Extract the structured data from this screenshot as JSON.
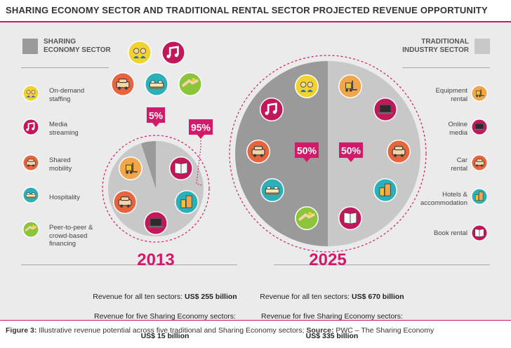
{
  "title": "SHARING ECONOMY SECTOR AND TRADITIONAL RENTAL SECTOR PROJECTED REVENUE OPPORTUNITY",
  "left_header": "SHARING\nECONOMY SECTOR",
  "right_header": "TRADITIONAL\nINDUSTRY SECTOR",
  "colors": {
    "accent": "#d2196a",
    "sharing": "#9a9a9a",
    "traditional": "#c8c8c8",
    "panel": "#ebebeb"
  },
  "left_legend": [
    {
      "label": "On-demand\nstaffing",
      "icon": "staffing-icon",
      "color": "#f2d22e"
    },
    {
      "label": "Media\nstreaming",
      "icon": "music-icon",
      "color": "#c2185b"
    },
    {
      "label": "Shared\nmobility",
      "icon": "car-icon",
      "color": "#e8643c"
    },
    {
      "label": "Hospitality",
      "icon": "bed-icon",
      "color": "#2ab0b8"
    },
    {
      "label": "Peer-to-peer &\ncrowd-based\nfinancing",
      "icon": "handshake-icon",
      "color": "#8cc43c"
    }
  ],
  "right_legend": [
    {
      "label": "Equipment\nrental",
      "icon": "forklift-icon",
      "color": "#f0a64a"
    },
    {
      "label": "Online\nmedia",
      "icon": "laptop-icon",
      "color": "#c2185b"
    },
    {
      "label": "Car\nrental",
      "icon": "car-icon",
      "color": "#e8643c"
    },
    {
      "label": "Hotels &\naccommodation",
      "icon": "buildings-icon",
      "color": "#2ab0b8"
    },
    {
      "label": "Book rental",
      "icon": "book-icon",
      "color": "#c2185b"
    }
  ],
  "chart_data": [
    {
      "type": "pie",
      "title": "2013",
      "slices": [
        {
          "name": "Sharing Economy",
          "value": 5,
          "label": "5%"
        },
        {
          "name": "Traditional",
          "value": 95,
          "label": "95%"
        }
      ],
      "revenue_line1_prefix": "Revenue for all ten sectors: ",
      "revenue_line1_value": "US$ 255 billion",
      "revenue_line2": "Revenue for five Sharing Economy sectors:",
      "revenue_line3": "US$ 15 billion"
    },
    {
      "type": "pie",
      "title": "2025",
      "slices": [
        {
          "name": "Sharing Economy",
          "value": 50,
          "label": "50%"
        },
        {
          "name": "Traditional",
          "value": 50,
          "label": "50%"
        }
      ],
      "revenue_line1_prefix": "Revenue for all ten sectors: ",
      "revenue_line1_value": "US$ 670 billion",
      "revenue_line2": "Revenue for five Sharing Economy sectors:",
      "revenue_line3": "US$ 335 billion"
    }
  ],
  "caption_label": "Figure 3:",
  "caption_text": " Illustrative revenue potential across five traditional and Sharing Economy sectors; ",
  "caption_source_label": "Source:",
  "caption_source": " PWC – The Sharing Economy"
}
